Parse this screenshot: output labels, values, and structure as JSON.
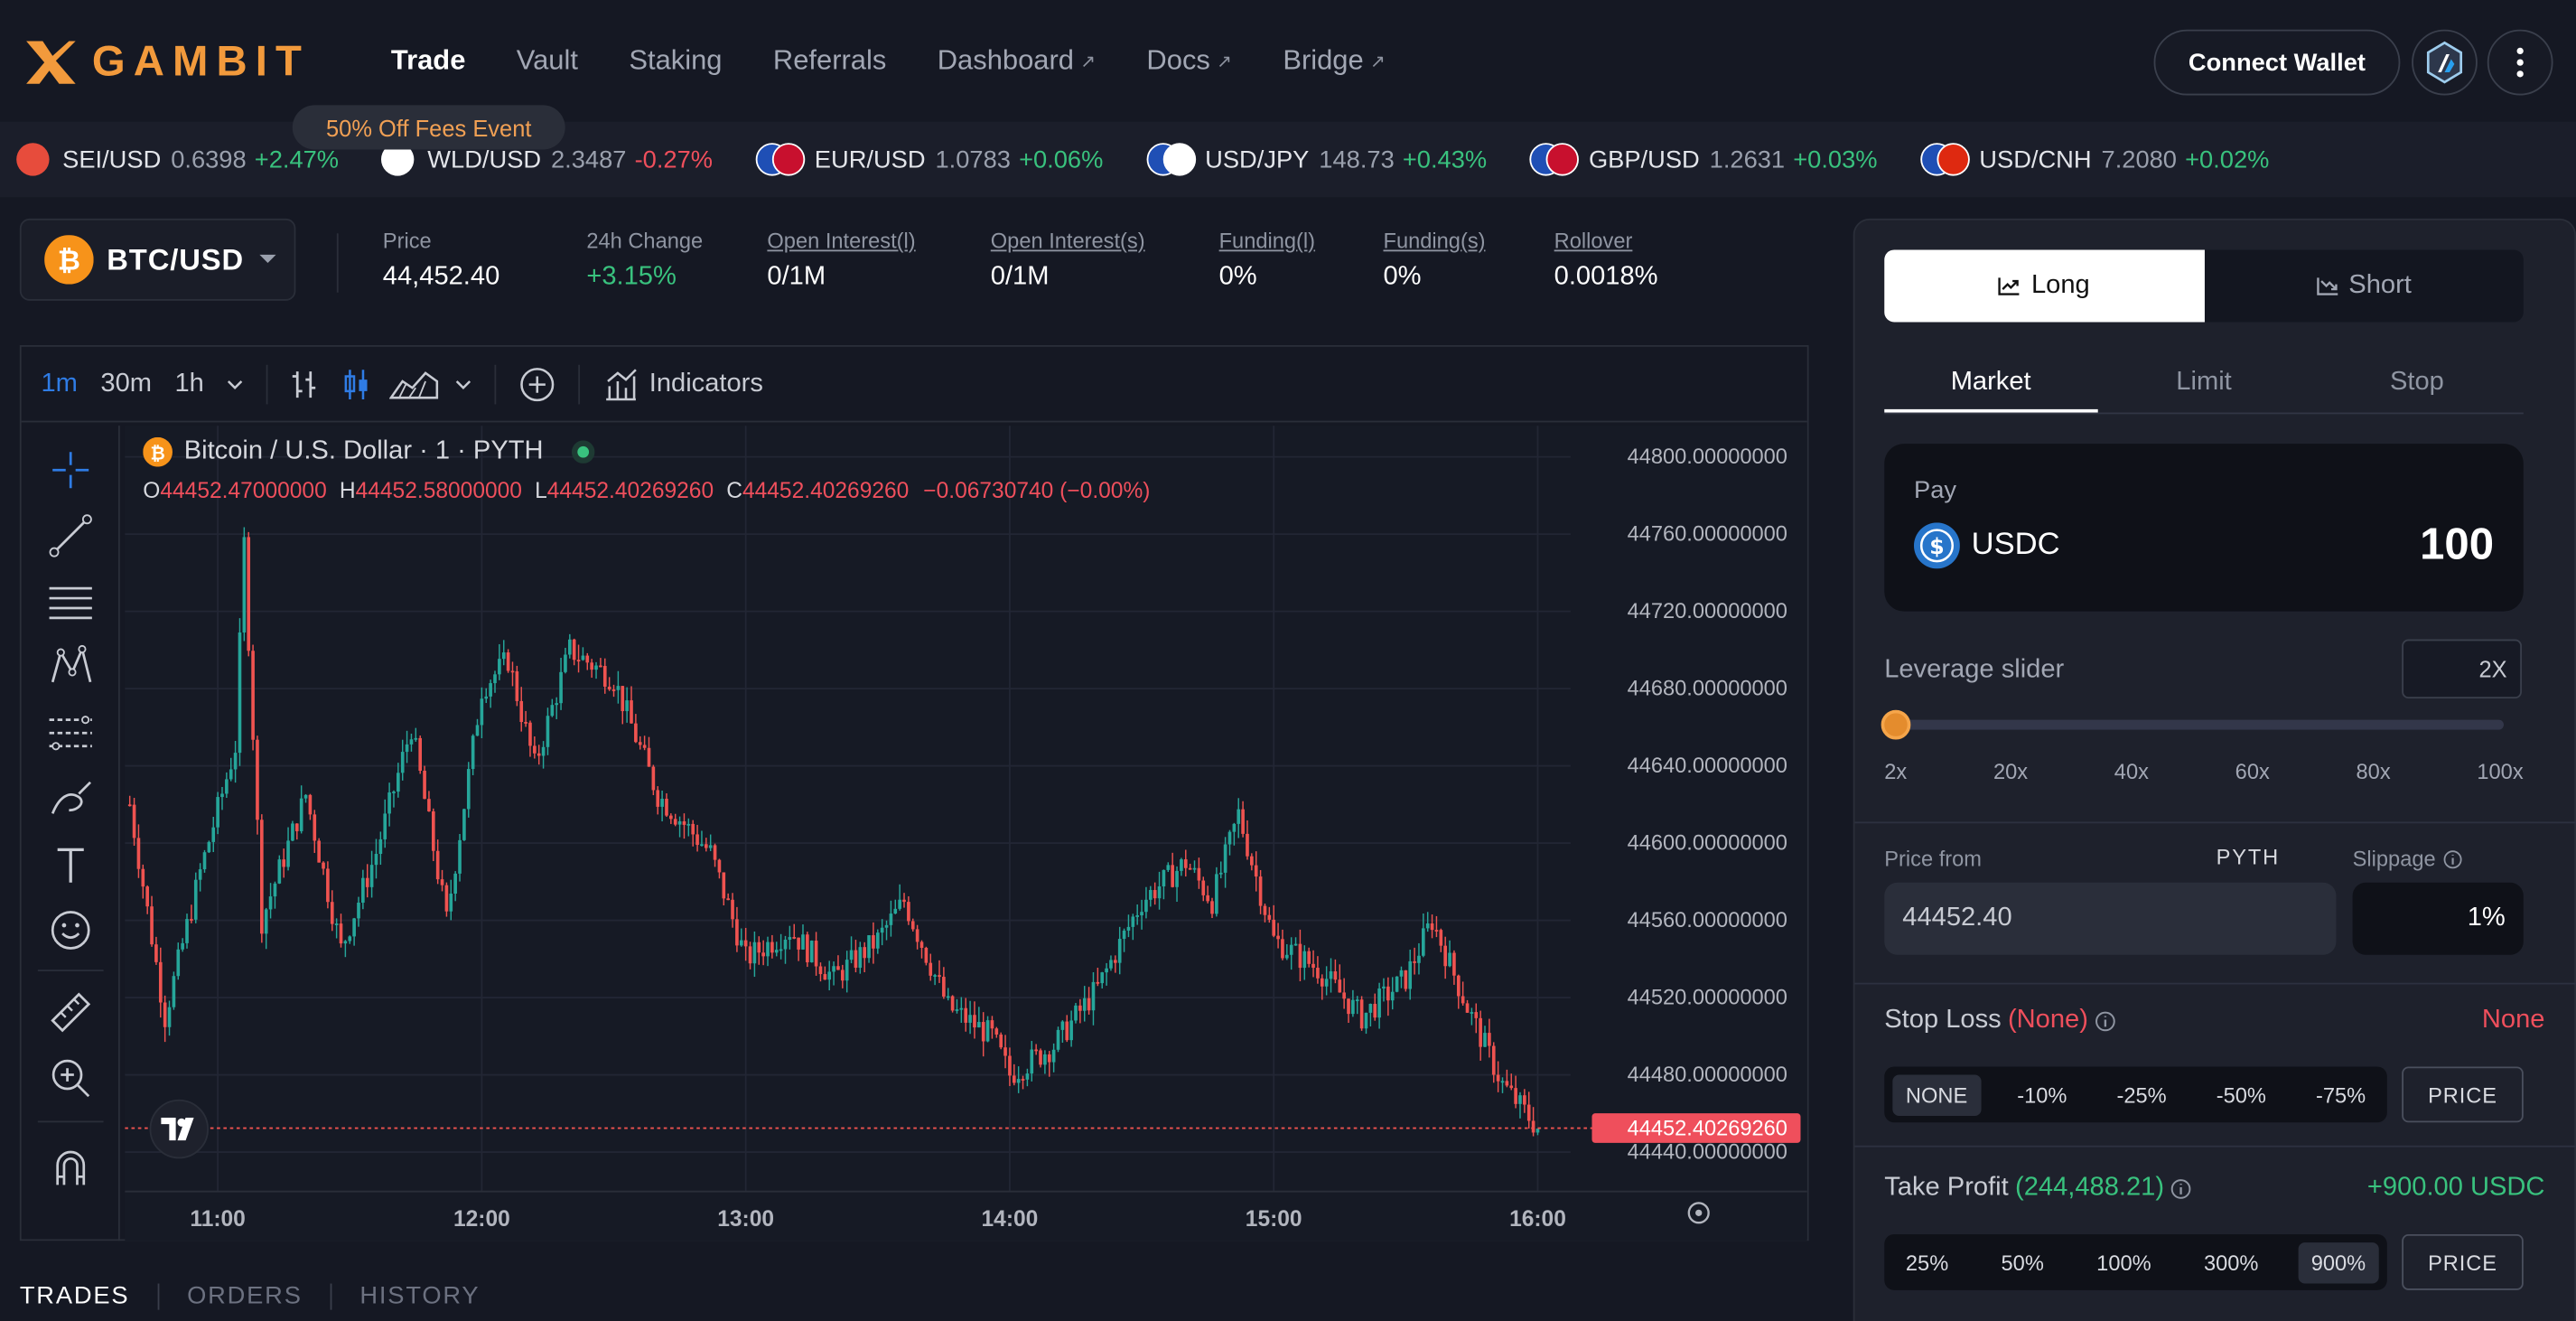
{
  "app": {
    "name": "GAMBIT",
    "promo": "50% Off Fees Event",
    "connect_wallet": "Connect Wallet"
  },
  "nav": [
    {
      "label": "Trade",
      "active": true,
      "external": false
    },
    {
      "label": "Vault",
      "active": false,
      "external": false
    },
    {
      "label": "Staking",
      "active": false,
      "external": false
    },
    {
      "label": "Referrals",
      "active": false,
      "external": false
    },
    {
      "label": "Dashboard",
      "active": false,
      "external": true
    },
    {
      "label": "Docs",
      "active": false,
      "external": true
    },
    {
      "label": "Bridge",
      "active": false,
      "external": true
    }
  ],
  "ticker": [
    {
      "pair": "SEI/USD",
      "price": "0.6398",
      "change": "+2.47%"
    },
    {
      "pair": "WLD/USD",
      "price": "2.3487",
      "change": "-0.27%"
    },
    {
      "pair": "EUR/USD",
      "price": "1.0783",
      "change": "+0.06%"
    },
    {
      "pair": "USD/JPY",
      "price": "148.73",
      "change": "+0.43%"
    },
    {
      "pair": "GBP/USD",
      "price": "1.2631",
      "change": "+0.03%"
    },
    {
      "pair": "USD/CNH",
      "price": "7.2080",
      "change": "+0.02%"
    }
  ],
  "market": {
    "pair": "BTC/USD",
    "stats": [
      {
        "label": "Price",
        "value": "44,452.40",
        "underline": false
      },
      {
        "label": "24h Change",
        "value": "+3.15%",
        "underline": false
      },
      {
        "label": "Open Interest(l)",
        "value": "0/1M",
        "underline": true
      },
      {
        "label": "Open Interest(s)",
        "value": "0/1M",
        "underline": true
      },
      {
        "label": "Funding(l)",
        "value": "0%",
        "underline": true
      },
      {
        "label": "Funding(s)",
        "value": "0%",
        "underline": true
      },
      {
        "label": "Rollover",
        "value": "0.0018%",
        "underline": true
      }
    ]
  },
  "chart_toolbar": {
    "intervals": [
      "1m",
      "30m",
      "1h"
    ],
    "active_interval": "1m",
    "indicators": "Indicators"
  },
  "chart_data": {
    "type": "candlestick",
    "title": "Bitcoin / U.S. Dollar · 1 · PYTH",
    "ohlc": {
      "o_label": "O",
      "o": "44452.47000000",
      "h_label": "H",
      "h": "44452.58000000",
      "l_label": "L",
      "l": "44452.40269260",
      "c_label": "C",
      "c": "44452.40269260",
      "change": "−0.06730740 (−0.00%)"
    },
    "y_ticks": [
      "44800.00000000",
      "44760.00000000",
      "44720.00000000",
      "44680.00000000",
      "44640.00000000",
      "44600.00000000",
      "44560.00000000",
      "44520.00000000",
      "44480.00000000",
      "44440.00000000"
    ],
    "y_range": [
      44440,
      44800
    ],
    "x_ticks": [
      "11:00",
      "12:00",
      "13:00",
      "14:00",
      "15:00",
      "16:00"
    ],
    "x_range": [
      "10:40",
      "16:00"
    ],
    "last_price": "44452.40269260",
    "last_price_value": 44452.4,
    "anchors": [
      [
        "10:40",
        44620
      ],
      [
        "10:48",
        44510
      ],
      [
        "10:56",
        44585
      ],
      [
        "11:04",
        44650
      ],
      [
        "11:06",
        44755
      ],
      [
        "11:10",
        44560
      ],
      [
        "11:20",
        44625
      ],
      [
        "11:28",
        44545
      ],
      [
        "11:36",
        44595
      ],
      [
        "11:44",
        44660
      ],
      [
        "11:52",
        44560
      ],
      [
        "12:00",
        44680
      ],
      [
        "12:06",
        44695
      ],
      [
        "12:12",
        44640
      ],
      [
        "12:20",
        44700
      ],
      [
        "12:30",
        44685
      ],
      [
        "12:40",
        44625
      ],
      [
        "12:52",
        44595
      ],
      [
        "13:00",
        44540
      ],
      [
        "13:10",
        44555
      ],
      [
        "13:20",
        44530
      ],
      [
        "13:30",
        44550
      ],
      [
        "13:36",
        44570
      ],
      [
        "13:46",
        44515
      ],
      [
        "13:56",
        44500
      ],
      [
        "14:00",
        44480
      ],
      [
        "14:10",
        44495
      ],
      [
        "14:20",
        44525
      ],
      [
        "14:30",
        44570
      ],
      [
        "14:40",
        44590
      ],
      [
        "14:46",
        44570
      ],
      [
        "14:52",
        44615
      ],
      [
        "15:00",
        44550
      ],
      [
        "15:10",
        44535
      ],
      [
        "15:20",
        44510
      ],
      [
        "15:30",
        44530
      ],
      [
        "15:36",
        44560
      ],
      [
        "15:44",
        44515
      ],
      [
        "15:52",
        44475
      ],
      [
        "16:00",
        44452.4
      ]
    ]
  },
  "order": {
    "long": "Long",
    "short": "Short",
    "tabs": [
      "Market",
      "Limit",
      "Stop"
    ],
    "pay_label": "Pay",
    "pay_token": "USDC",
    "pay_amount": "100",
    "leverage_label": "Leverage slider",
    "leverage_value": "2X",
    "leverage_fraction": 0,
    "leverage_marks": [
      "2x",
      "20x",
      "40x",
      "60x",
      "80x",
      "100x"
    ],
    "price_from": "Price from",
    "oracle": "PYTH",
    "slippage_label": "Slippage",
    "price_value": "44452.40",
    "slippage_value": "1%",
    "stop_loss": {
      "label": "Stop Loss",
      "tag": "(None)",
      "right": "None",
      "options": [
        "NONE",
        "-10%",
        "-25%",
        "-50%",
        "-75%"
      ],
      "price_btn": "PRICE"
    },
    "take_profit": {
      "label": "Take Profit",
      "tag": "(244,488.21)",
      "right": "+900.00 USDC",
      "options": [
        "25%",
        "50%",
        "100%",
        "300%",
        "900%"
      ],
      "price_btn": "PRICE"
    }
  },
  "bottom_tabs": [
    "TRADES",
    "ORDERS",
    "HISTORY"
  ],
  "colors": {
    "accent": "#f29a3c",
    "up": "#39c27e",
    "down": "#ef4f5c",
    "bg": "#151823"
  }
}
